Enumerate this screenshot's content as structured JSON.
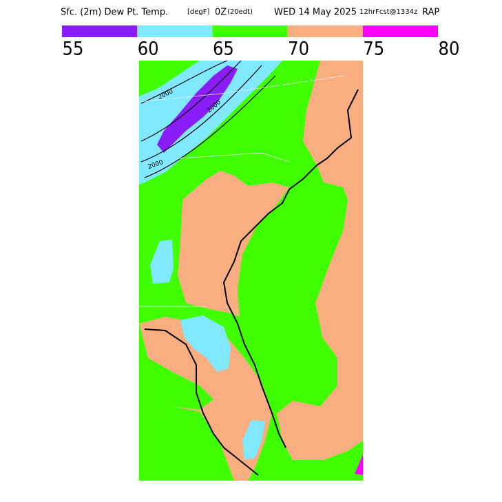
{
  "header": {
    "parts": [
      "Sfc. (2m) Dew Pt. Temp.",
      "[degF]",
      "0Z",
      "(20edt)",
      "WED 14 May 2025",
      "12hrFcst@1334z",
      "RAP"
    ]
  },
  "colorbar": {
    "colors": [
      "#8a1cf8",
      "#80e8ff",
      "#40ff00",
      "#f8ae80",
      "#ff00ff"
    ],
    "labels": [
      55,
      60,
      65,
      70,
      75,
      80
    ]
  },
  "map": {
    "contour_labels": [
      "2000",
      "2000",
      "2000"
    ]
  }
}
